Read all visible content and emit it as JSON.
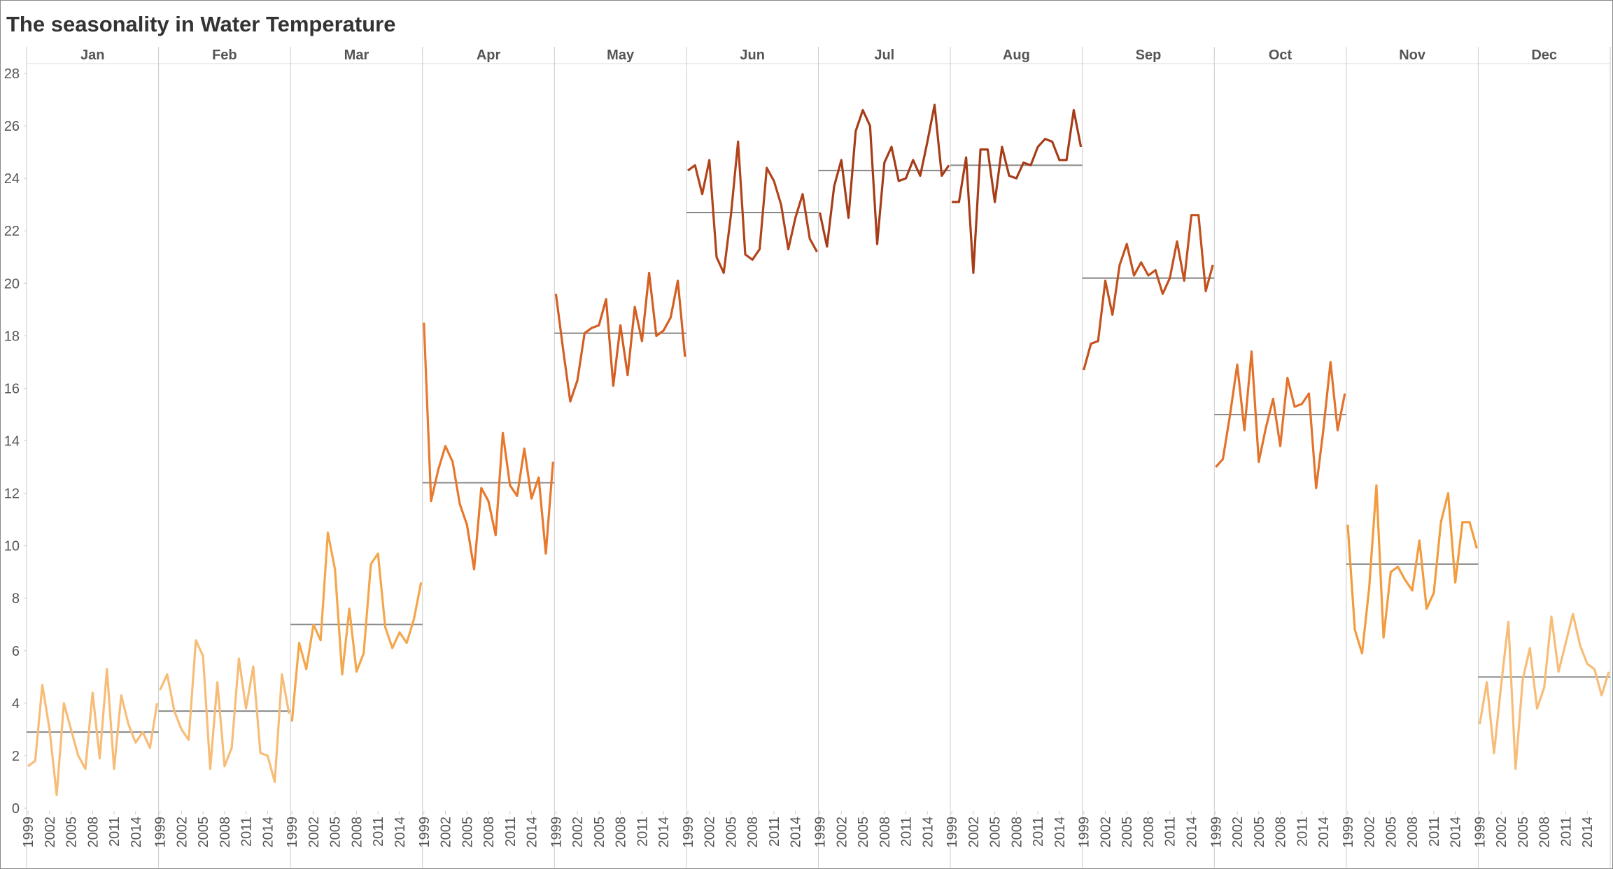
{
  "chart_data": {
    "type": "cycle",
    "title": "The seasonality in Water Temperature",
    "x": [
      1999,
      2000,
      2001,
      2002,
      2003,
      2004,
      2005,
      2006,
      2007,
      2008,
      2009,
      2010,
      2011,
      2012,
      2013,
      2014,
      2015,
      2016,
      2017
    ],
    "xlim": [
      1998.8,
      2017.2
    ],
    "xticks": [
      1999,
      2002,
      2005,
      2008,
      2011,
      2014
    ],
    "ylim": [
      0,
      28
    ],
    "yticks": [
      0,
      2,
      4,
      6,
      8,
      10,
      12,
      14,
      16,
      18,
      20,
      22,
      24,
      26,
      28
    ],
    "average_color": "#888888",
    "series": [
      {
        "name": "Jan",
        "color": "#f7bd78",
        "average": 2.9,
        "values": [
          1.6,
          1.8,
          4.7,
          3.0,
          0.5,
          4.0,
          3.0,
          2.0,
          1.5,
          4.4,
          1.9,
          5.3,
          1.5,
          4.3,
          3.2,
          2.5,
          2.9,
          2.3,
          4.0
        ]
      },
      {
        "name": "Feb",
        "color": "#f7bd78",
        "average": 3.7,
        "values": [
          4.5,
          5.1,
          3.7,
          3.0,
          2.6,
          6.4,
          5.8,
          1.5,
          4.8,
          1.6,
          2.3,
          5.7,
          3.8,
          5.4,
          2.1,
          2.0,
          1.0,
          5.1,
          3.6
        ]
      },
      {
        "name": "Mar",
        "color": "#f4a64a",
        "average": 7.0,
        "values": [
          3.3,
          6.3,
          5.3,
          7.0,
          6.4,
          10.5,
          9.1,
          5.1,
          7.6,
          5.2,
          5.9,
          9.3,
          9.7,
          6.9,
          6.1,
          6.7,
          6.3,
          7.2,
          8.6
        ]
      },
      {
        "name": "Apr",
        "color": "#e8782c",
        "average": 12.4,
        "values": [
          18.5,
          11.7,
          12.9,
          13.8,
          13.2,
          11.6,
          10.8,
          9.1,
          12.2,
          11.7,
          10.4,
          14.3,
          12.3,
          11.9,
          13.7,
          11.8,
          12.6,
          9.7,
          13.2
        ]
      },
      {
        "name": "May",
        "color": "#d35f22",
        "average": 18.1,
        "values": [
          19.6,
          17.5,
          15.5,
          16.3,
          18.1,
          18.3,
          18.4,
          19.4,
          16.1,
          18.4,
          16.5,
          19.1,
          17.8,
          20.4,
          18.0,
          18.2,
          18.7,
          20.1,
          17.2
        ]
      },
      {
        "name": "Jun",
        "color": "#b2431b",
        "average": 22.7,
        "values": [
          24.3,
          24.5,
          23.4,
          24.7,
          21.0,
          20.4,
          22.6,
          25.4,
          21.1,
          20.9,
          21.3,
          24.4,
          23.9,
          23.0,
          21.3,
          22.5,
          23.4,
          21.7,
          21.2
        ]
      },
      {
        "name": "Jul",
        "color": "#a63c18",
        "average": 24.3,
        "values": [
          22.7,
          21.4,
          23.7,
          24.7,
          22.5,
          25.8,
          26.6,
          26.0,
          21.5,
          24.6,
          25.2,
          23.9,
          24.0,
          24.7,
          24.1,
          25.4,
          26.8,
          24.1,
          24.5
        ]
      },
      {
        "name": "Aug",
        "color": "#a63c18",
        "average": 24.5,
        "values": [
          23.1,
          23.1,
          24.8,
          20.4,
          25.1,
          25.1,
          23.1,
          25.2,
          24.1,
          24.0,
          24.6,
          24.5,
          25.2,
          25.5,
          25.4,
          24.7,
          24.7,
          26.6,
          25.2
        ]
      },
      {
        "name": "Sep",
        "color": "#c2511e",
        "average": 20.2,
        "values": [
          16.7,
          17.7,
          17.8,
          20.1,
          18.8,
          20.7,
          21.5,
          20.3,
          20.8,
          20.3,
          20.5,
          19.6,
          20.2,
          21.6,
          20.1,
          22.6,
          22.6,
          19.7,
          20.7
        ]
      },
      {
        "name": "Oct",
        "color": "#e3722a",
        "average": 15.0,
        "values": [
          13.0,
          13.3,
          15.0,
          16.9,
          14.4,
          17.4,
          13.2,
          14.5,
          15.6,
          13.8,
          16.4,
          15.3,
          15.4,
          15.8,
          12.2,
          14.4,
          17.0,
          14.4,
          15.8
        ]
      },
      {
        "name": "Nov",
        "color": "#f29c3e",
        "average": 9.3,
        "values": [
          10.8,
          6.8,
          5.9,
          8.4,
          12.3,
          6.5,
          9.0,
          9.2,
          8.7,
          8.3,
          10.2,
          7.6,
          8.2,
          10.9,
          12.0,
          8.6,
          10.9,
          10.9,
          9.9
        ]
      },
      {
        "name": "Dec",
        "color": "#f7bd78",
        "average": 5.0,
        "values": [
          3.2,
          4.8,
          2.1,
          4.7,
          7.1,
          1.5,
          4.9,
          6.1,
          3.8,
          4.6,
          7.3,
          5.2,
          6.3,
          7.4,
          6.2,
          5.5,
          5.3,
          4.3,
          5.2
        ]
      }
    ]
  }
}
